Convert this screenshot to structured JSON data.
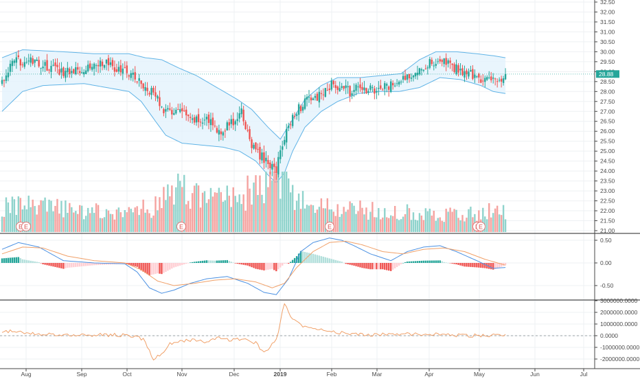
{
  "colors": {
    "up": "#26a69a",
    "down": "#ef5350",
    "vol_up": "#8fd3cc",
    "vol_down": "#f5a29f",
    "bb_line": "#5fb3e6",
    "bb_fill": "#e3f2fd",
    "macd_line": "#4a90e2",
    "signal_line": "#f0a068",
    "osc_line": "#f0a068",
    "grid": "#eef0f3",
    "axis_text": "#4a4a4a",
    "price_tag": "#26a69a"
  },
  "price_tag": "28.88",
  "event_marker_label": "E",
  "chart_data": [
    {
      "type": "candlestick",
      "panel": "price",
      "ylim": [
        21.0,
        32.5
      ],
      "y_ticks": [
        "32.50",
        "32.00",
        "31.50",
        "31.00",
        "30.50",
        "30.00",
        "29.50",
        "29.00",
        "28.50",
        "28.00",
        "27.50",
        "27.00",
        "26.50",
        "26.00",
        "25.50",
        "25.00",
        "24.50",
        "24.00",
        "23.50",
        "23.00",
        "22.50",
        "22.00",
        "21.50",
        "21.00"
      ],
      "x_ticks": [
        "Aug",
        "Sep",
        "Oct",
        "Nov",
        "Dec",
        "2019",
        "Feb",
        "Mar",
        "Apr",
        "May",
        "Jun",
        "Jul"
      ],
      "last_price": 28.88,
      "close_anchors": [
        [
          0,
          28.5
        ],
        [
          5,
          29.4
        ],
        [
          10,
          29.6
        ],
        [
          20,
          29.3
        ],
        [
          30,
          29.0
        ],
        [
          40,
          29.2
        ],
        [
          50,
          29.5
        ],
        [
          55,
          29.1
        ],
        [
          62,
          29.0
        ],
        [
          68,
          28.4
        ],
        [
          73,
          28.0
        ],
        [
          77,
          27.5
        ],
        [
          80,
          26.9
        ],
        [
          86,
          27.1
        ],
        [
          92,
          26.5
        ],
        [
          100,
          26.6
        ],
        [
          106,
          26.0
        ],
        [
          112,
          26.4
        ],
        [
          117,
          26.9
        ],
        [
          122,
          25.3
        ],
        [
          126,
          24.8
        ],
        [
          130,
          24.4
        ],
        [
          134,
          24.1
        ],
        [
          138,
          25.7
        ],
        [
          143,
          27.0
        ],
        [
          150,
          27.6
        ],
        [
          156,
          27.8
        ],
        [
          162,
          28.4
        ],
        [
          170,
          28.0
        ],
        [
          176,
          28.2
        ],
        [
          182,
          28.0
        ],
        [
          190,
          28.3
        ],
        [
          196,
          28.6
        ],
        [
          204,
          29.2
        ],
        [
          208,
          29.4
        ],
        [
          214,
          29.6
        ],
        [
          220,
          29.2
        ],
        [
          226,
          29.0
        ],
        [
          232,
          28.7
        ],
        [
          240,
          28.5
        ],
        [
          246,
          28.8
        ]
      ],
      "upper_band_anchors": [
        [
          0,
          29.7
        ],
        [
          10,
          30.1
        ],
        [
          30,
          30.0
        ],
        [
          45,
          29.9
        ],
        [
          62,
          29.9
        ],
        [
          70,
          29.7
        ],
        [
          78,
          29.6
        ],
        [
          86,
          29.2
        ],
        [
          95,
          28.8
        ],
        [
          105,
          28.2
        ],
        [
          115,
          27.6
        ],
        [
          122,
          27.1
        ],
        [
          130,
          26.2
        ],
        [
          136,
          25.6
        ],
        [
          142,
          26.6
        ],
        [
          148,
          27.6
        ],
        [
          156,
          28.3
        ],
        [
          164,
          28.7
        ],
        [
          175,
          28.7
        ],
        [
          185,
          28.8
        ],
        [
          195,
          28.9
        ],
        [
          204,
          29.6
        ],
        [
          212,
          30.0
        ],
        [
          222,
          30.0
        ],
        [
          232,
          29.9
        ],
        [
          240,
          29.8
        ],
        [
          246,
          29.7
        ]
      ],
      "lower_band_anchors": [
        [
          0,
          27.0
        ],
        [
          10,
          28.0
        ],
        [
          20,
          28.3
        ],
        [
          40,
          28.4
        ],
        [
          62,
          28.0
        ],
        [
          68,
          27.5
        ],
        [
          75,
          26.5
        ],
        [
          80,
          25.8
        ],
        [
          88,
          25.4
        ],
        [
          98,
          25.3
        ],
        [
          108,
          25.2
        ],
        [
          116,
          25.0
        ],
        [
          124,
          24.5
        ],
        [
          130,
          23.8
        ],
        [
          134,
          23.4
        ],
        [
          138,
          23.9
        ],
        [
          142,
          25.0
        ],
        [
          148,
          26.2
        ],
        [
          156,
          27.0
        ],
        [
          164,
          27.5
        ],
        [
          174,
          27.9
        ],
        [
          184,
          28.0
        ],
        [
          194,
          28.0
        ],
        [
          204,
          28.2
        ],
        [
          214,
          28.7
        ],
        [
          224,
          28.6
        ],
        [
          234,
          28.3
        ],
        [
          240,
          28.0
        ],
        [
          246,
          27.9
        ]
      ],
      "volume_relative_anchors": [
        [
          0,
          0.45
        ],
        [
          20,
          0.4
        ],
        [
          40,
          0.35
        ],
        [
          60,
          0.32
        ],
        [
          72,
          0.4
        ],
        [
          80,
          0.55
        ],
        [
          85,
          0.7
        ],
        [
          90,
          0.65
        ],
        [
          100,
          0.55
        ],
        [
          110,
          0.6
        ],
        [
          118,
          0.62
        ],
        [
          124,
          0.7
        ],
        [
          130,
          0.8
        ],
        [
          134,
          0.95
        ],
        [
          138,
          0.85
        ],
        [
          142,
          0.6
        ],
        [
          148,
          0.45
        ],
        [
          160,
          0.4
        ],
        [
          180,
          0.35
        ],
        [
          200,
          0.32
        ],
        [
          215,
          0.3
        ],
        [
          230,
          0.32
        ],
        [
          246,
          0.34
        ]
      ]
    },
    {
      "type": "macd",
      "panel": "macd",
      "ylim": [
        -0.75,
        0.65
      ],
      "y_ticks": [
        "0.50",
        "0.00",
        "-0.50"
      ],
      "macd_anchors": [
        [
          0,
          0.3
        ],
        [
          8,
          0.45
        ],
        [
          18,
          0.35
        ],
        [
          30,
          0.05
        ],
        [
          45,
          0.0
        ],
        [
          60,
          -0.02
        ],
        [
          66,
          -0.2
        ],
        [
          72,
          -0.55
        ],
        [
          78,
          -0.67
        ],
        [
          84,
          -0.6
        ],
        [
          92,
          -0.45
        ],
        [
          100,
          -0.35
        ],
        [
          110,
          -0.3
        ],
        [
          120,
          -0.45
        ],
        [
          128,
          -0.65
        ],
        [
          134,
          -0.7
        ],
        [
          140,
          -0.35
        ],
        [
          146,
          0.25
        ],
        [
          152,
          0.45
        ],
        [
          160,
          0.55
        ],
        [
          166,
          0.5
        ],
        [
          172,
          0.38
        ],
        [
          180,
          0.2
        ],
        [
          190,
          0.05
        ],
        [
          198,
          0.25
        ],
        [
          206,
          0.35
        ],
        [
          214,
          0.38
        ],
        [
          222,
          0.25
        ],
        [
          232,
          0.05
        ],
        [
          240,
          -0.12
        ],
        [
          246,
          -0.1
        ]
      ],
      "signal_anchors": [
        [
          0,
          0.2
        ],
        [
          10,
          0.35
        ],
        [
          20,
          0.33
        ],
        [
          32,
          0.15
        ],
        [
          45,
          0.05
        ],
        [
          60,
          0.0
        ],
        [
          68,
          -0.15
        ],
        [
          76,
          -0.4
        ],
        [
          84,
          -0.5
        ],
        [
          94,
          -0.45
        ],
        [
          104,
          -0.38
        ],
        [
          114,
          -0.35
        ],
        [
          124,
          -0.42
        ],
        [
          132,
          -0.55
        ],
        [
          138,
          -0.45
        ],
        [
          144,
          -0.1
        ],
        [
          152,
          0.25
        ],
        [
          160,
          0.45
        ],
        [
          168,
          0.48
        ],
        [
          176,
          0.4
        ],
        [
          186,
          0.25
        ],
        [
          196,
          0.2
        ],
        [
          206,
          0.3
        ],
        [
          216,
          0.33
        ],
        [
          226,
          0.25
        ],
        [
          236,
          0.08
        ],
        [
          246,
          -0.05
        ]
      ]
    },
    {
      "type": "line",
      "panel": "oscillator",
      "ylim": [
        -2800000,
        3100000
      ],
      "y_ticks": [
        "3000000.0000",
        "2000000.0000",
        "1000000.0000",
        "0.0000",
        "-1000000.0000",
        "-2000000.0000"
      ],
      "values_anchors": [
        [
          0,
          400000
        ],
        [
          10,
          300000
        ],
        [
          20,
          100000
        ],
        [
          30,
          50000
        ],
        [
          40,
          80000
        ],
        [
          55,
          60000
        ],
        [
          66,
          0
        ],
        [
          70,
          -500000
        ],
        [
          74,
          -2100000
        ],
        [
          78,
          -1500000
        ],
        [
          82,
          -700000
        ],
        [
          88,
          -500000
        ],
        [
          94,
          -300000
        ],
        [
          100,
          -600000
        ],
        [
          106,
          -200000
        ],
        [
          112,
          -400000
        ],
        [
          118,
          -300000
        ],
        [
          124,
          -600000
        ],
        [
          128,
          -1500000
        ],
        [
          131,
          -900000
        ],
        [
          134,
          -400000
        ],
        [
          138,
          2800000
        ],
        [
          142,
          1400000
        ],
        [
          146,
          900000
        ],
        [
          150,
          700000
        ],
        [
          156,
          600000
        ],
        [
          164,
          300000
        ],
        [
          172,
          150000
        ],
        [
          180,
          50000
        ],
        [
          190,
          200000
        ],
        [
          200,
          100000
        ],
        [
          210,
          150000
        ],
        [
          222,
          50000
        ],
        [
          234,
          0
        ],
        [
          246,
          50000
        ]
      ]
    }
  ]
}
